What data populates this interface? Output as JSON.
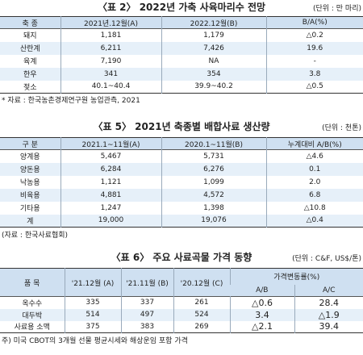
{
  "table2": {
    "title": "〈표 2〉 2022년 가축 사육마리수 전망",
    "unit": "(단위 : 만 마리)",
    "header": [
      "축 종",
      "2021년.12월(A)",
      "2022.12월(B)",
      "B/A(%)"
    ],
    "rows": [
      [
        "돼지",
        "1,181",
        "1,179",
        "△0.2"
      ],
      [
        "산란계",
        "6,211",
        "7,426",
        "19.6"
      ],
      [
        "육계",
        "7,190",
        "NA",
        "-"
      ],
      [
        "한우",
        "341",
        "354",
        "3.8"
      ],
      [
        "젖소",
        "40.1~40.4",
        "39.9~40.2",
        "△0.5"
      ]
    ],
    "note": "* 자료 : 한국농촌경제연구원 농업관측, 2021"
  },
  "table5": {
    "title": "〈표 5〉 2021년 축종별 배합사료 생산량",
    "unit": "(단위 : 천톤)",
    "header": [
      "구 분",
      "2021.1~11월(A)",
      "2020.1~11월(B)",
      "누계대비 A/B(%)"
    ],
    "rows": [
      [
        "양계용",
        "5,467",
        "5,731",
        "△4.6"
      ],
      [
        "양돈용",
        "6,284",
        "6,276",
        "0.1"
      ],
      [
        "낙농용",
        "1,121",
        "1,099",
        "2.0"
      ],
      [
        "비육용",
        "4,881",
        "4,572",
        "6.8"
      ],
      [
        "기타용",
        "1,247",
        "1,398",
        "△10.8"
      ],
      [
        "계",
        "19,000",
        "19,076",
        "△0.4"
      ]
    ],
    "note": "(자료 : 한국사료협회)"
  },
  "table6": {
    "title": "〈표 6〉 주요 사료곡물 가격 동향",
    "unit": "(단위 : C&F, US$/톤)",
    "header": [
      "품 목",
      "'21.12월 (A)",
      "'21.11월 (B)",
      "'20.12월 (C)",
      "가격변동률(%)"
    ],
    "subheader": [
      "A/B",
      "A/C"
    ],
    "rows": [
      [
        "옥수수",
        "335",
        "337",
        "261",
        "△0.6",
        "28.4"
      ],
      [
        "대두박",
        "514",
        "497",
        "524",
        "3.4",
        "△1.9"
      ],
      [
        "사료용 소맥",
        "375",
        "383",
        "269",
        "△2.1",
        "39.4"
      ]
    ],
    "note": "주) 미국 CBOT의 3개월 선물 평균시세와 해상운임 포함 가격"
  }
}
